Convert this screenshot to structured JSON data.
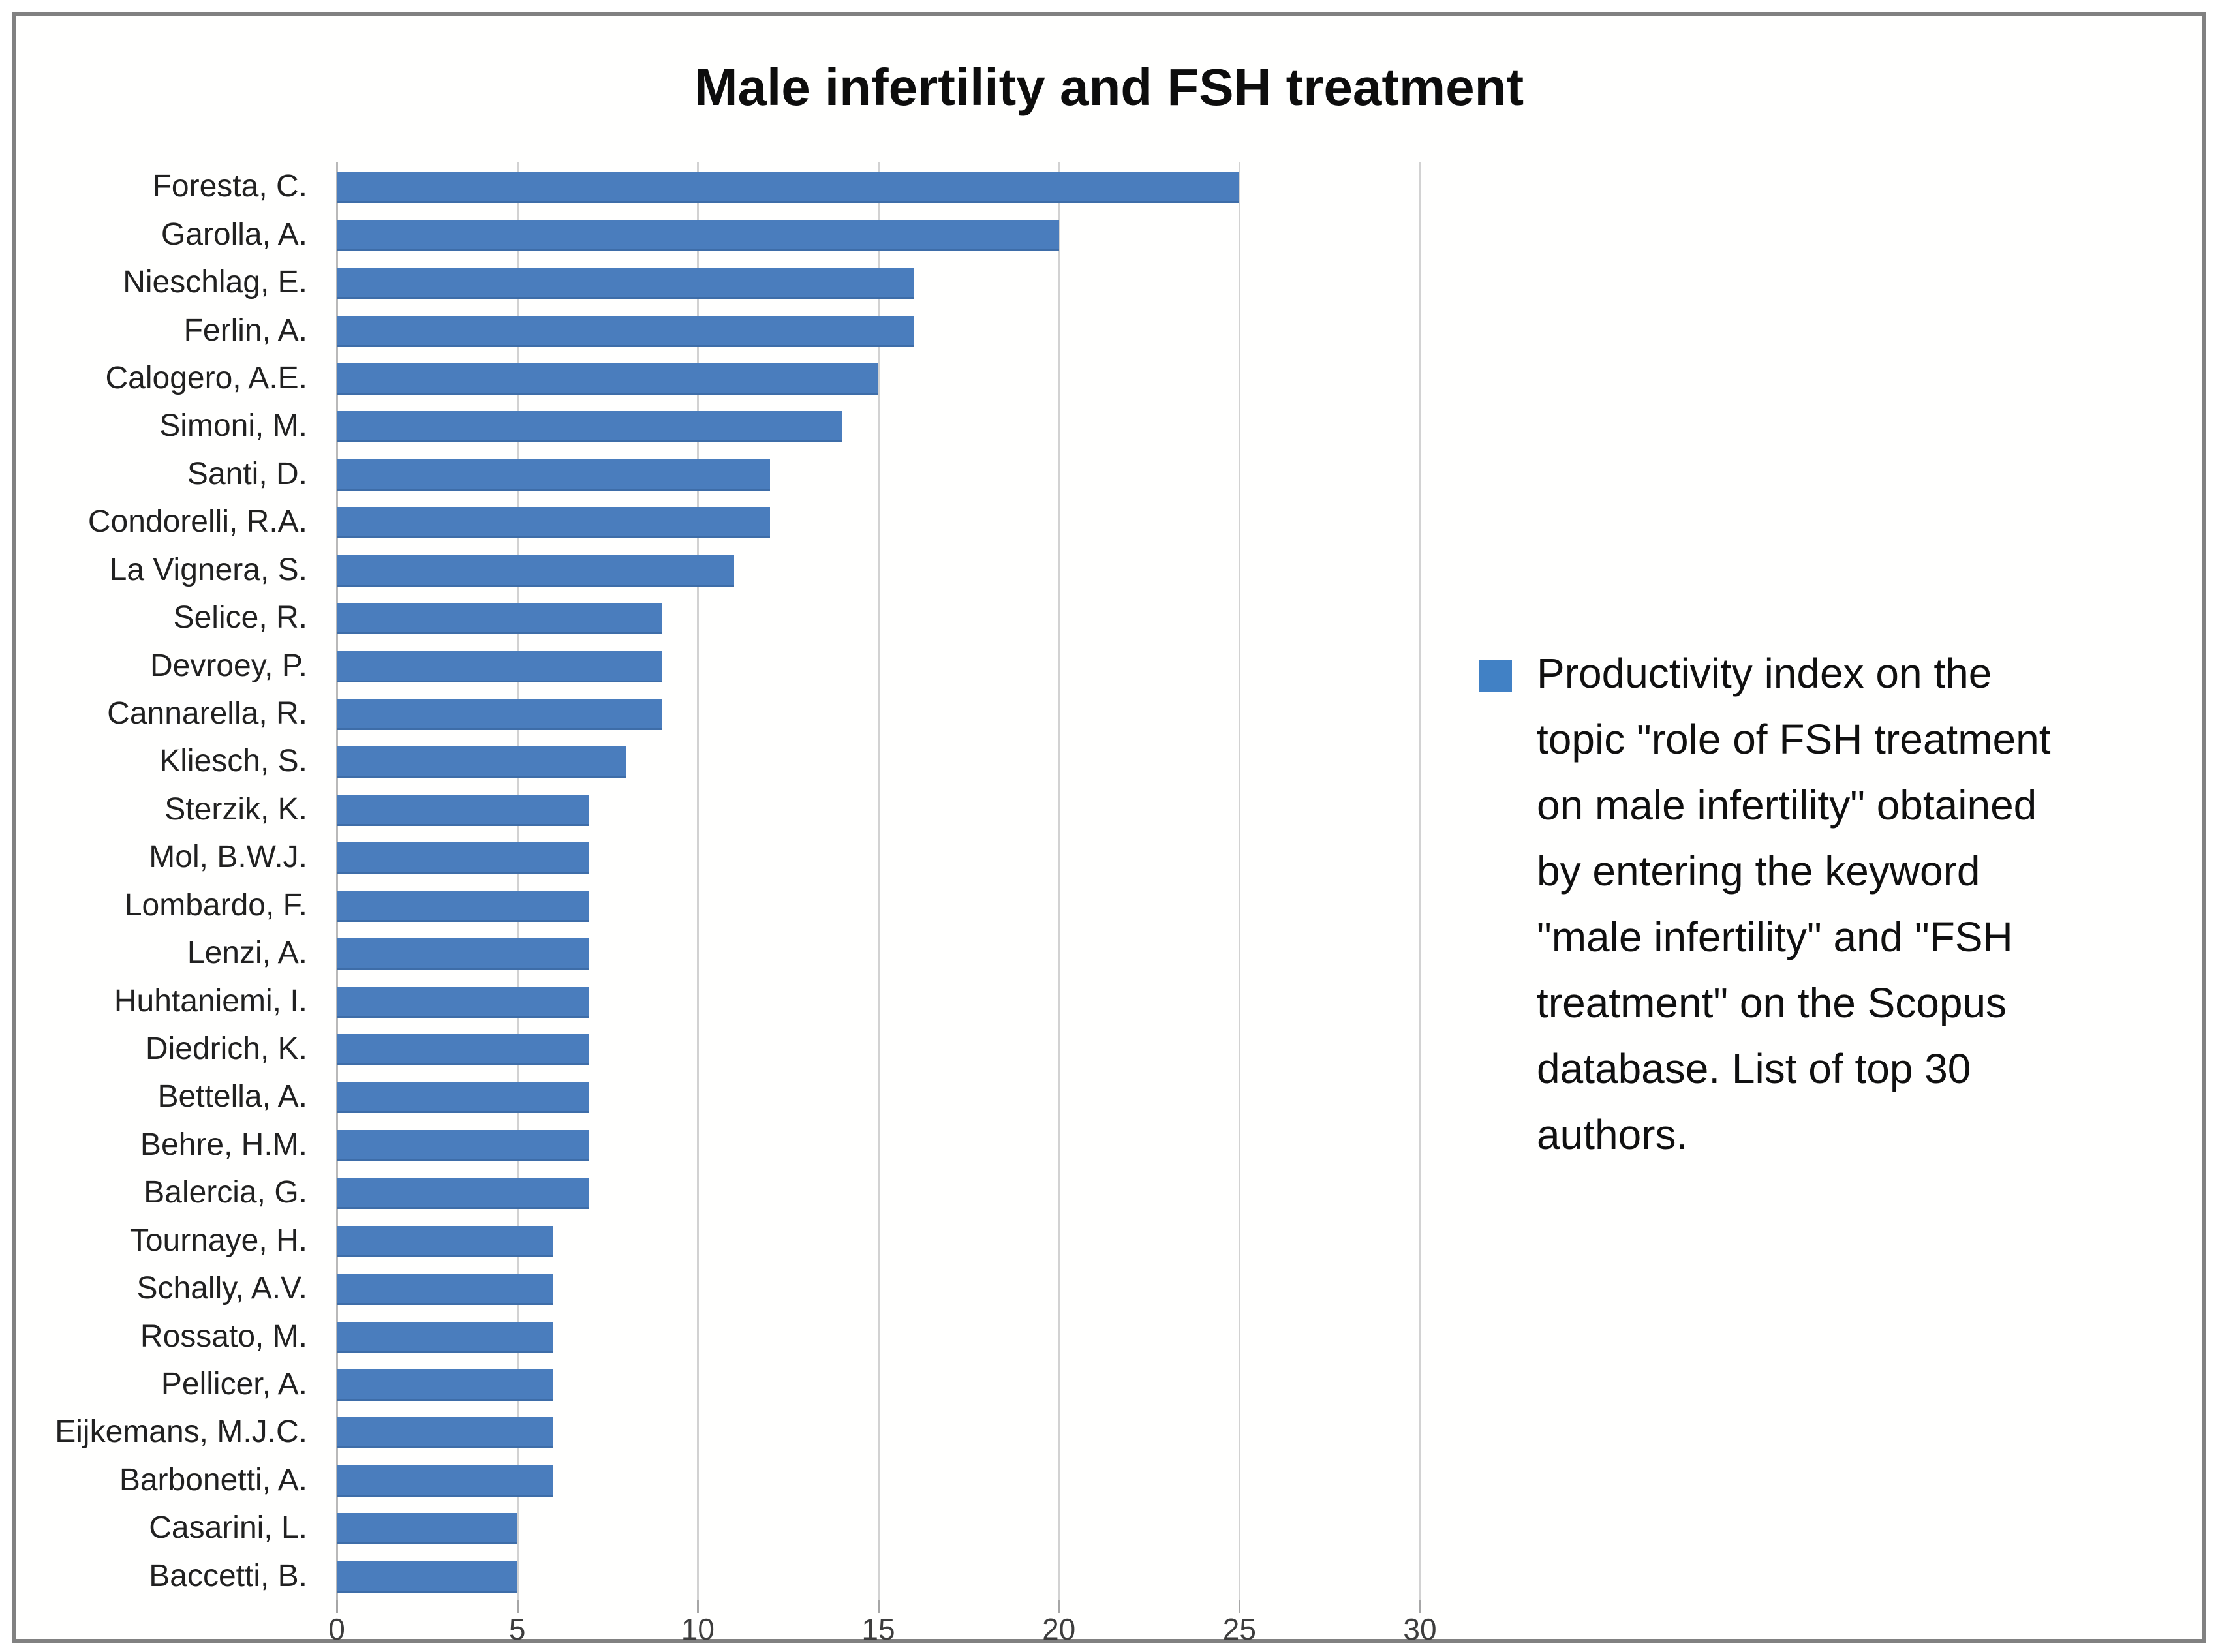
{
  "title": "Male infertility and FSH treatment",
  "colors": {
    "bar": "#4a7dbd",
    "bar_edge": "#3e6da8",
    "legend_swatch": "#4181c5",
    "gridline": "#d2d2d2",
    "frame_border": "#818181",
    "tick_text": "#3d3d3d",
    "category_text": "#212121",
    "title_text": "#0d0d0d",
    "background": "#ffffff"
  },
  "legend": {
    "swatch_icon": "blue-square-icon",
    "position": "right",
    "text": "Productivity index on the\ntopic \"role of FSH treatment\non male infertility\" obtained\nby entering the keyword\n\"male infertility\" and \"FSH\ntreatment\" on the Scopus\ndatabase. List of top 30\nauthors."
  },
  "x_axis": {
    "min": 0,
    "max": 30,
    "ticks": [
      0,
      5,
      10,
      15,
      20,
      25,
      30
    ]
  },
  "chart_data": {
    "type": "bar",
    "orientation": "horizontal",
    "title": "Male infertility and FSH treatment",
    "categories": [
      "Foresta, C.",
      "Garolla, A.",
      "Nieschlag, E.",
      "Ferlin, A.",
      "Calogero, A.E.",
      "Simoni, M.",
      "Santi, D.",
      "Condorelli, R.A.",
      "La Vignera, S.",
      "Selice, R.",
      "Devroey, P.",
      "Cannarella, R.",
      "Kliesch, S.",
      "Sterzik, K.",
      "Mol, B.W.J.",
      "Lombardo, F.",
      "Lenzi, A.",
      "Huhtaniemi, I.",
      "Diedrich, K.",
      "Bettella, A.",
      "Behre, H.M.",
      "Balercia, G.",
      "Tournaye, H.",
      "Schally, A.V.",
      "Rossato, M.",
      "Pellicer, A.",
      "Eijkemans, M.J.C.",
      "Barbonetti, A.",
      "Casarini, L.",
      "Baccetti, B."
    ],
    "values": [
      25,
      20,
      16,
      16,
      15,
      14,
      12,
      12,
      11,
      9,
      9,
      9,
      8,
      7,
      7,
      7,
      7,
      7,
      7,
      7,
      7,
      7,
      6,
      6,
      6,
      6,
      6,
      6,
      5,
      5
    ],
    "series": [
      {
        "name": "Productivity index on the topic \"role of FSH treatment on male infertility\" obtained by entering the keyword \"male infertility\" and \"FSH treatment\" on the Scopus database. List of top 30 authors.",
        "values": [
          25,
          20,
          16,
          16,
          15,
          14,
          12,
          12,
          11,
          9,
          9,
          9,
          8,
          7,
          7,
          7,
          7,
          7,
          7,
          7,
          7,
          7,
          6,
          6,
          6,
          6,
          6,
          6,
          5,
          5
        ]
      }
    ],
    "xlabel": "",
    "ylabel": "",
    "xlim": [
      0,
      30
    ],
    "x_ticks": [
      0,
      5,
      10,
      15,
      20,
      25,
      30
    ],
    "grid": "vertical-only",
    "legend_position": "right",
    "value_labels": false
  }
}
